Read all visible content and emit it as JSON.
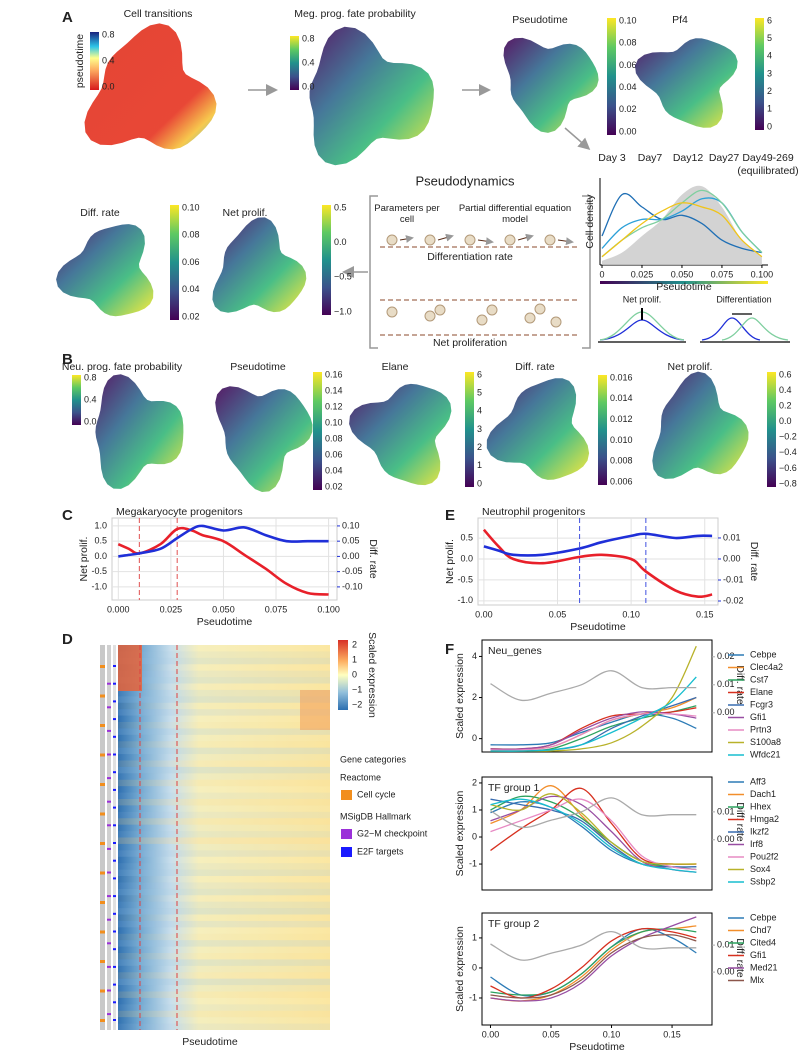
{
  "figure": {
    "panel_labels": [
      "A",
      "B",
      "C",
      "D",
      "E",
      "F"
    ],
    "embeddings": [
      {
        "title": "Cell transitions",
        "colorbar_label": "pseudotime",
        "ticks": [
          "0.8",
          "0.4",
          "0.0"
        ]
      },
      {
        "title": "Meg. prog. fate probability",
        "ticks": [
          "0.8",
          "0.4",
          "0.0"
        ]
      },
      {
        "title": "Pseudotime",
        "ticks": [
          "0.10",
          "0.08",
          "0.06",
          "0.04",
          "0.02",
          "0.00"
        ]
      },
      {
        "title": "Pf4",
        "ticks": [
          "6",
          "5",
          "4",
          "3",
          "2",
          "1",
          "0"
        ]
      },
      {
        "title": "Diff. rate",
        "ticks": [
          "0.10",
          "0.08",
          "0.06",
          "0.04",
          "0.02"
        ]
      },
      {
        "title": "Net prolif.",
        "ticks": [
          "0.5",
          "0.0",
          "−0.5",
          "−1.0"
        ]
      },
      {
        "title": "Neu. prog. fate probability",
        "ticks": [
          "0.8",
          "0.4",
          "0.0"
        ]
      },
      {
        "title": "Pseudotime",
        "ticks": [
          "0.16",
          "0.14",
          "0.12",
          "0.10",
          "0.08",
          "0.06",
          "0.04",
          "0.02"
        ]
      },
      {
        "title": "Elane",
        "ticks": [
          "6",
          "5",
          "4",
          "3",
          "2",
          "1",
          "0"
        ]
      },
      {
        "title": "Diff. rate",
        "ticks": [
          "0.016",
          "0.014",
          "0.012",
          "0.010",
          "0.008",
          "0.006"
        ]
      },
      {
        "title": "Net prolif.",
        "ticks": [
          "0.6",
          "0.4",
          "0.2",
          "0.0",
          "−0.2",
          "−0.4",
          "−0.6",
          "−0.8"
        ]
      }
    ],
    "pseudodynamics": {
      "title": "Pseudodynamics",
      "parameters": "Parameters per cell",
      "pde": "Partial differential equation model",
      "diff_rate": "Differentiation rate",
      "net_prolif": "Net proliferation"
    },
    "density_params": {
      "net_prolif": "Net prolif.",
      "differentiation": "Differentiation"
    },
    "heatmap": {
      "colorbar_title": "Scaled expression",
      "colorbar_ticks": [
        "2",
        "1",
        "0",
        "−1",
        "−2"
      ],
      "legend_title": "Gene categories",
      "groups": [
        {
          "title": "Reactome",
          "items": [
            {
              "label": "Cell cycle",
              "color": "#f28e1c"
            }
          ]
        },
        {
          "title": "MSigDB Hallmark",
          "items": [
            {
              "label": "G2−M checkpoint",
              "color": "#9b30d9"
            },
            {
              "label": "E2F targets",
              "color": "#1a1aff"
            }
          ]
        }
      ],
      "xlabel": "Pseudotime"
    }
  },
  "chart_data": [
    {
      "type": "line",
      "xlabel": "Pseudotime",
      "ylabel": "Cell density",
      "x": [
        0,
        0.0125,
        0.025,
        0.0375,
        0.05,
        0.0625,
        0.075,
        0.0875,
        0.1
      ],
      "xlim": [
        -0.00125,
        0.1038
      ],
      "ylim": [
        0,
        1.05
      ],
      "xticks": [
        0,
        0.025,
        {
          "value": 0.05,
          "label": "0.050"
        },
        0.075,
        {
          "value": 0.1,
          "label": "0.100"
        }
      ],
      "series": [
        {
          "name": "Day 3",
          "color": "#1f6fb5",
          "values": [
            0.35,
            0.85,
            0.7,
            0.55,
            0.6,
            0.5,
            0.3,
            0.2,
            0.15
          ]
        },
        {
          "name": "Day7",
          "color": "#2ca0d8",
          "values": [
            0.2,
            0.45,
            0.55,
            0.55,
            0.65,
            0.8,
            0.75,
            0.4,
            0.15
          ]
        },
        {
          "name": "Day12",
          "color": "#7fcf9f",
          "values": [
            0.1,
            0.3,
            0.45,
            0.55,
            0.75,
            0.9,
            0.75,
            0.4,
            0.15
          ]
        },
        {
          "name": "Day27",
          "color": "#f0c419",
          "values": [
            0.1,
            0.3,
            0.5,
            0.65,
            0.75,
            0.7,
            0.6,
            0.3,
            0.1
          ]
        },
        {
          "name": "Day49-269",
          "color": "#c8c8c8",
          "fill": true,
          "values": [
            0.05,
            0.15,
            0.35,
            0.55,
            0.85,
            0.95,
            0.7,
            0.3,
            0.1
          ]
        }
      ],
      "legend_note": "(equilibrated)"
    },
    {
      "type": "line",
      "title": "Megakaryocyte progenitors",
      "xlabel": "Pseudotime",
      "grid": true,
      "x": [
        0,
        0.005,
        0.01,
        0.02,
        0.028,
        0.035,
        0.04,
        0.05,
        0.06,
        0.07,
        0.08,
        0.09,
        0.1
      ],
      "xlim": [
        -0.003,
        0.104
      ],
      "ylim": [
        -1.43,
        1.26
      ],
      "y2lim": [
        -0.143,
        0.126
      ],
      "xticks": [
        {
          "value": 0,
          "label": "0.000"
        },
        0.025,
        {
          "value": 0.05,
          "label": "0.050"
        },
        0.075,
        {
          "value": 0.1,
          "label": "0.100"
        }
      ],
      "yticks": [
        {
          "value": 1,
          "label": "1.0"
        },
        0.5,
        {
          "value": 0,
          "label": "0.0"
        },
        -0.5,
        {
          "value": -1,
          "label": "-1.0"
        }
      ],
      "y2ticks": [
        {
          "value": 0.1,
          "label": "0.10"
        },
        0.05,
        {
          "value": 0,
          "label": "0.00"
        },
        -0.05,
        {
          "value": -0.1,
          "label": "-0.10"
        }
      ],
      "vlines": [
        0.01,
        0.028
      ],
      "vline_color": "#e05050",
      "series": [
        {
          "name": "Net prolif.",
          "color": "#e8202a",
          "values": [
            0.4,
            0.25,
            0.1,
            0.4,
            0.9,
            0.85,
            0.7,
            0.5,
            0.05,
            -0.4,
            -0.9,
            -1.2,
            -1.25
          ]
        },
        {
          "name": "Diff. rate",
          "color": "#1f2fd8",
          "axis": "y2",
          "values": [
            0.0,
            0.005,
            0.01,
            0.025,
            0.06,
            0.09,
            0.1,
            0.085,
            0.095,
            0.07,
            0.05,
            0.05,
            0.05
          ]
        }
      ]
    },
    {
      "type": "line",
      "title": "Neutrophil progenitors",
      "xlabel": "Pseudotime",
      "grid": true,
      "x": [
        0,
        0.01,
        0.02,
        0.04,
        0.065,
        0.08,
        0.1,
        0.11,
        0.13,
        0.145,
        0.155
      ],
      "xlim": [
        -0.004,
        0.159
      ],
      "ylim": [
        -1.1,
        0.98
      ],
      "y2lim": [
        -0.0219,
        0.0195
      ],
      "xticks": [
        {
          "value": 0,
          "label": "0.00"
        },
        0.05,
        {
          "value": 0.1,
          "label": "0.10"
        },
        0.15
      ],
      "yticks": [
        0.5,
        {
          "value": 0,
          "label": "0.0"
        },
        -0.5,
        {
          "value": -1,
          "label": "-1.0"
        }
      ],
      "y2ticks": [
        0.01,
        {
          "value": 0,
          "label": "0.00"
        },
        -0.01,
        -0.02
      ],
      "vlines": [
        0.065,
        0.11
      ],
      "vline_color": "#4050e0",
      "series": [
        {
          "name": "Net prolif.",
          "color": "#e8202a",
          "values": [
            0.7,
            0.3,
            0.0,
            -0.1,
            0.05,
            0.1,
            0.0,
            -0.3,
            -0.75,
            -0.9,
            -0.85
          ]
        },
        {
          "name": "Diff. rate",
          "color": "#1f2fd8",
          "axis": "y2",
          "values": [
            0.006,
            0.004,
            0.002,
            0.002,
            0.005,
            0.008,
            0.011,
            0.012,
            0.01,
            0.011,
            0.011
          ]
        }
      ]
    },
    {
      "type": "line",
      "title": "Neu_genes",
      "ylabel": "Scaled expression",
      "x": [
        0,
        0.025,
        0.05,
        0.075,
        0.1,
        0.125,
        0.15,
        0.17
      ],
      "xlim": [
        -0.007,
        0.183
      ],
      "ylim": [
        -0.65,
        4.8
      ],
      "y2lim": [
        -0.014,
        0.026
      ],
      "yticks": [
        0,
        2,
        4
      ],
      "y2ticks": [
        {
          "value": 0,
          "label": "0.00"
        },
        0.01,
        0.02
      ],
      "series": [
        {
          "name": "Cebpe",
          "color": "#2c7bb6",
          "values": [
            -0.3,
            -0.3,
            -0.2,
            0.3,
            0.8,
            1.2,
            1.0,
            0.5
          ]
        },
        {
          "name": "Clec4a2",
          "color": "#f28e2b",
          "values": [
            -0.5,
            -0.5,
            -0.4,
            0.2,
            0.9,
            1.2,
            1.5,
            2.0
          ]
        },
        {
          "name": "Cst7",
          "color": "#2ca25f",
          "values": [
            -0.6,
            -0.6,
            -0.5,
            0,
            0.6,
            1.0,
            1.3,
            1.6
          ]
        },
        {
          "name": "Elane",
          "color": "#d7301f",
          "values": [
            -0.5,
            -0.5,
            -0.3,
            0.5,
            1.1,
            1.2,
            1.3,
            1.5
          ]
        },
        {
          "name": "Fcgr3",
          "color": "#386cb0",
          "values": [
            -0.6,
            -0.6,
            -0.55,
            -0.3,
            0.5,
            1.1,
            1.6,
            2.0
          ]
        },
        {
          "name": "Gfi1",
          "color": "#984ea3",
          "values": [
            -0.5,
            -0.5,
            -0.3,
            0.4,
            1.0,
            1.3,
            1.2,
            1.0
          ]
        },
        {
          "name": "Prtn3",
          "color": "#e78ac3",
          "values": [
            -0.55,
            -0.55,
            -0.4,
            0.2,
            0.9,
            1.2,
            1.2,
            1.1
          ]
        },
        {
          "name": "S100a8",
          "color": "#b8b22a",
          "values": [
            -0.6,
            -0.6,
            -0.6,
            -0.5,
            -0.2,
            0.6,
            2.0,
            4.5
          ]
        },
        {
          "name": "Wfdc21",
          "color": "#17becf",
          "values": [
            -0.6,
            -0.6,
            -0.55,
            -0.3,
            0.3,
            1.0,
            1.8,
            3.0
          ]
        },
        {
          "name": "Diff. rate",
          "color": "#aaaaaa",
          "axis": "y2",
          "values": [
            0.0104,
            0.0045,
            0.007,
            0.01,
            0.015,
            0.009,
            0.009,
            0.009
          ]
        }
      ]
    },
    {
      "type": "line",
      "title": "TF group 1",
      "ylabel": "Scaled expression",
      "x": [
        0,
        0.025,
        0.05,
        0.075,
        0.1,
        0.125,
        0.15,
        0.17
      ],
      "xlim": [
        -0.007,
        0.183
      ],
      "ylim": [
        -1.96,
        2.22
      ],
      "y2lim": [
        -0.018,
        0.0225
      ],
      "yticks": [
        -1,
        0,
        1,
        2
      ],
      "y2ticks": [
        {
          "value": 0,
          "label": "0.00"
        },
        0.01
      ],
      "series": [
        {
          "name": "Aff3",
          "color": "#2c7bb6",
          "values": [
            0.9,
            1.3,
            1.1,
            0.4,
            -0.5,
            -1.0,
            -1.1,
            -1.1
          ]
        },
        {
          "name": "Dach1",
          "color": "#f28e2b",
          "values": [
            0.5,
            1.0,
            1.9,
            0.8,
            -0.3,
            -1.0,
            -1.0,
            -1.0
          ]
        },
        {
          "name": "Hhex",
          "color": "#2ca25f",
          "values": [
            1.0,
            1.5,
            1.3,
            0.7,
            -0.2,
            -0.9,
            -1.1,
            -1.2
          ]
        },
        {
          "name": "Hmga2",
          "color": "#d7301f",
          "values": [
            -0.5,
            0.3,
            1.0,
            1.8,
            0.5,
            -0.8,
            -1.0,
            -1.0
          ]
        },
        {
          "name": "Ikzf2",
          "color": "#386cb0",
          "values": [
            1.4,
            1.2,
            1.0,
            0.6,
            -0.3,
            -1.0,
            -1.1,
            -1.1
          ]
        },
        {
          "name": "Irf8",
          "color": "#984ea3",
          "values": [
            0.6,
            1.0,
            1.5,
            1.2,
            0.2,
            -0.9,
            -1.2,
            -1.3
          ]
        },
        {
          "name": "Pou2f2",
          "color": "#e78ac3",
          "values": [
            0.2,
            0.6,
            1.0,
            1.4,
            0.6,
            -0.7,
            -1.1,
            -1.2
          ]
        },
        {
          "name": "Sox4",
          "color": "#b8b22a",
          "values": [
            1.2,
            1.0,
            1.6,
            0.9,
            -0.2,
            -0.9,
            -1.0,
            -1.0
          ]
        },
        {
          "name": "Ssbp2",
          "color": "#17becf",
          "values": [
            1.2,
            1.4,
            1.1,
            0.5,
            -0.4,
            -1.0,
            -1.2,
            -1.3
          ]
        },
        {
          "name": "Diff. rate",
          "color": "#aaaaaa",
          "axis": "y2",
          "values": [
            0.0104,
            0.0045,
            0.007,
            0.01,
            0.015,
            0.009,
            0.009,
            0.009
          ]
        }
      ]
    },
    {
      "type": "line",
      "title": "TF group 2",
      "ylabel": "Scaled expression",
      "xlabel": "Pseudotime",
      "x": [
        0,
        0.025,
        0.05,
        0.075,
        0.1,
        0.125,
        0.15,
        0.17
      ],
      "xlim": [
        -0.007,
        0.183
      ],
      "ylim": [
        -1.9,
        1.83
      ],
      "y2lim": [
        -0.0196,
        0.0219
      ],
      "xticks": [
        {
          "value": 0,
          "label": "0.00"
        },
        0.05,
        {
          "value": 0.1,
          "label": "0.10"
        },
        0.15
      ],
      "yticks": [
        -1,
        0,
        1
      ],
      "y2ticks": [
        {
          "value": 0,
          "label": "0.00"
        },
        0.01
      ],
      "series": [
        {
          "name": "Cebpe",
          "color": "#2c7bb6",
          "values": [
            -0.3,
            -0.9,
            -0.8,
            -0.2,
            0.7,
            1.3,
            1.0,
            0.5
          ]
        },
        {
          "name": "Chd7",
          "color": "#f28e2b",
          "values": [
            -1.0,
            -1.1,
            -0.9,
            -0.3,
            0.6,
            1.2,
            1.3,
            1.4
          ]
        },
        {
          "name": "Cited4",
          "color": "#2ca25f",
          "values": [
            -0.8,
            -0.9,
            -0.8,
            -0.2,
            0.7,
            1.2,
            1.3,
            1.2
          ]
        },
        {
          "name": "Gfi1",
          "color": "#d7301f",
          "values": [
            -0.6,
            -1.0,
            -0.7,
            0.0,
            0.9,
            1.3,
            1.2,
            1.0
          ]
        },
        {
          "name": "Med21",
          "color": "#984ea3",
          "values": [
            -1.0,
            -1.1,
            -1.0,
            -0.5,
            0.4,
            1.0,
            1.4,
            1.7
          ]
        },
        {
          "name": "Mlx",
          "color": "#8c564b",
          "values": [
            -0.9,
            -1.0,
            -0.9,
            -0.4,
            0.5,
            1.0,
            1.1,
            0.9
          ]
        },
        {
          "name": "Diff. rate",
          "color": "#aaaaaa",
          "axis": "y2",
          "values": [
            0.0104,
            0.0045,
            0.007,
            0.01,
            0.015,
            0.009,
            0.009,
            0.009
          ]
        }
      ]
    }
  ]
}
